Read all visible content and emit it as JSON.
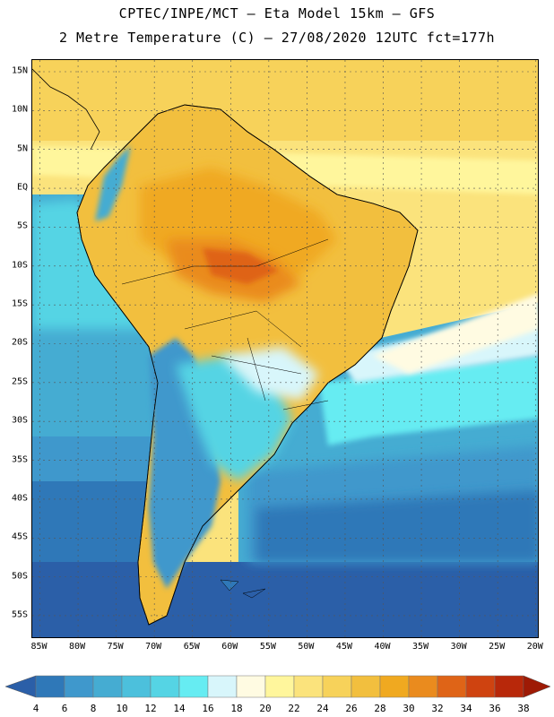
{
  "header": {
    "line1": "CPTEC/INPE/MCT –  Eta Model 15km – GFS",
    "line2": "2 Metre Temperature (C) – 27/08/2020 12UTC fct=177h"
  },
  "map": {
    "lat_labels": [
      "15N",
      "10N",
      "5N",
      "EQ",
      "5S",
      "10S",
      "15S",
      "20S",
      "25S",
      "30S",
      "35S",
      "40S",
      "45S",
      "50S",
      "55S"
    ],
    "lon_labels": [
      "85W",
      "80W",
      "75W",
      "70W",
      "65W",
      "60W",
      "55W",
      "50W",
      "45W",
      "40W",
      "35W",
      "30W",
      "25W",
      "20W"
    ],
    "lat_range": [
      -58,
      16.5
    ],
    "lon_range": [
      -86,
      -19.5
    ],
    "grid": "dashed"
  },
  "colorbar": {
    "levels": [
      "4",
      "6",
      "8",
      "10",
      "12",
      "14",
      "16",
      "18",
      "20",
      "22",
      "24",
      "26",
      "28",
      "30",
      "32",
      "34",
      "36",
      "38"
    ],
    "colors": [
      "#2b5fa8",
      "#2f78b8",
      "#3f98cc",
      "#45acd2",
      "#4cc0dc",
      "#55d4e4",
      "#66ecf2",
      "#d8f6fb",
      "#fffbe2",
      "#fff69c",
      "#fbe37c",
      "#f7d25a",
      "#f2bf3e",
      "#f0a920",
      "#ea8b1e",
      "#df6417",
      "#cf4310",
      "#b8280a",
      "#9e1a05"
    ]
  }
}
